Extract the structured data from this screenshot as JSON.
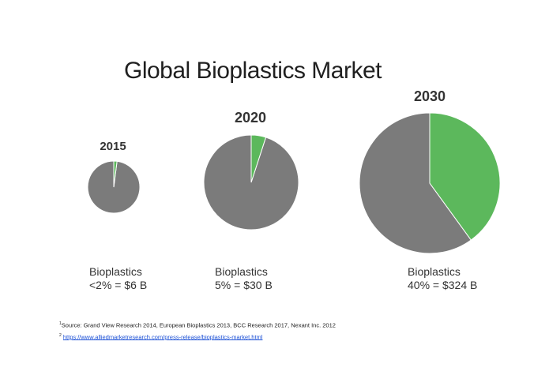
{
  "colors": {
    "other": "#7b7b7b",
    "bioplastics": "#5cb85c",
    "stroke": "#ffffff"
  },
  "chart_data": {
    "type": "pie",
    "title": "Global Bioplastics Market",
    "pies": [
      {
        "year": "2015",
        "share_percent": 2,
        "value_label": "<2% = $6 B",
        "series_label": "Bioplastics"
      },
      {
        "year": "2020",
        "share_percent": 5,
        "value_label": "5% = $30 B",
        "series_label": "Bioplastics"
      },
      {
        "year": "2030",
        "share_percent": 40,
        "value_label": "40% = $324 B",
        "series_label": "Bioplastics"
      }
    ]
  },
  "footnotes": {
    "note1_marker": "1",
    "note1_text": "Source: Grand View Research 2014, European Bioplastics 2013, BCC Research 2017, Nexant Inc. 2012",
    "note2_marker": "2",
    "note2_link": "https://www.alliedmarketresearch.com/press-release/bioplastics-market.html"
  }
}
